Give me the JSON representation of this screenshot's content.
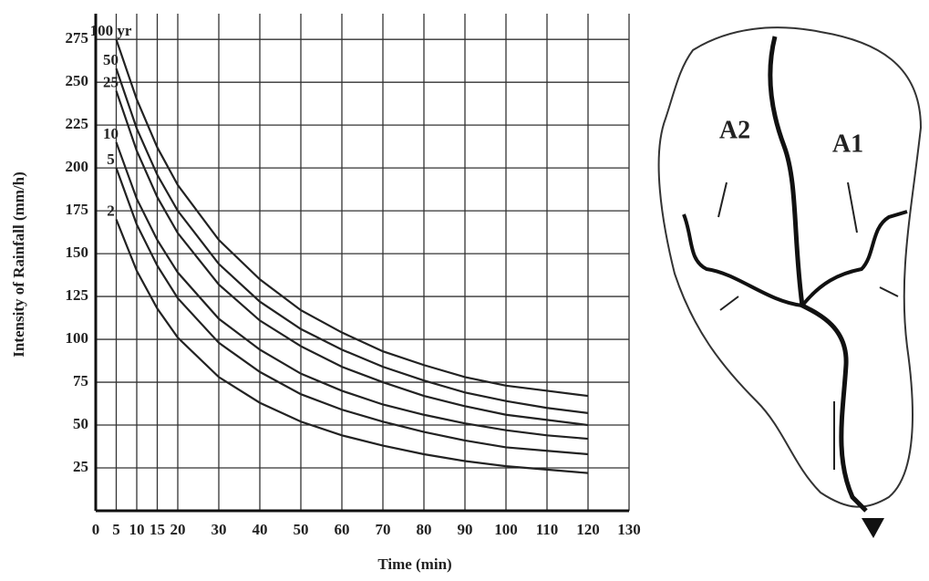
{
  "chart_data": {
    "type": "line",
    "x_label": "Time (min)",
    "y_label": "Intensity of Rainfall (mm/h)",
    "x": [
      5,
      10,
      15,
      20,
      30,
      40,
      50,
      60,
      70,
      80,
      90,
      100,
      110,
      120
    ],
    "series": [
      {
        "name": "100 yr",
        "color": "#222222",
        "values": [
          275,
          240,
          212,
          190,
          158,
          135,
          117,
          104,
          93,
          85,
          78,
          73,
          70,
          67
        ]
      },
      {
        "name": "50",
        "color": "#222222",
        "values": [
          258,
          223,
          196,
          175,
          144,
          122,
          106,
          94,
          84,
          76,
          69,
          64,
          60,
          57
        ]
      },
      {
        "name": "25",
        "color": "#222222",
        "values": [
          245,
          210,
          183,
          162,
          132,
          111,
          96,
          84,
          75,
          67,
          61,
          56,
          53,
          50
        ]
      },
      {
        "name": "10",
        "color": "#222222",
        "values": [
          215,
          182,
          158,
          139,
          112,
          94,
          80,
          70,
          62,
          56,
          51,
          47,
          44,
          42
        ]
      },
      {
        "name": "5",
        "color": "#222222",
        "values": [
          200,
          167,
          143,
          124,
          98,
          81,
          68,
          59,
          52,
          46,
          41,
          37,
          35,
          33
        ]
      },
      {
        "name": "2",
        "color": "#222222",
        "values": [
          170,
          140,
          118,
          101,
          78,
          63,
          52,
          44,
          38,
          33,
          29,
          26,
          24,
          22
        ]
      }
    ],
    "xlim": [
      0,
      130
    ],
    "ylim": [
      0,
      290
    ],
    "xticks": [
      0,
      5,
      10,
      15,
      20,
      30,
      40,
      50,
      60,
      70,
      80,
      90,
      100,
      110,
      120,
      130
    ],
    "yticks": [
      25,
      50,
      75,
      100,
      125,
      150,
      175,
      200,
      225,
      250,
      275
    ],
    "grid": true
  },
  "diagram": {
    "labels": [
      "A2",
      "A1"
    ]
  }
}
